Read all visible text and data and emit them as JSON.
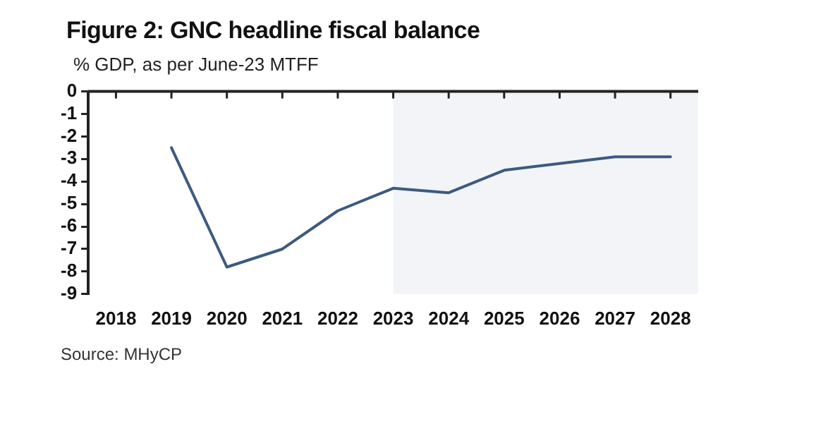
{
  "chart_data": {
    "type": "line",
    "title": "Figure 2: GNC headline fiscal balance",
    "subtitle": "% GDP, as per June-23 MTFF",
    "categories": [
      "2018",
      "2019",
      "2020",
      "2021",
      "2022",
      "2023",
      "2024",
      "2025",
      "2026",
      "2027",
      "2028"
    ],
    "series": [
      {
        "color": "#3d5a80",
        "values": [
          null,
          -2.5,
          -7.8,
          -7.0,
          -5.3,
          -4.3,
          -4.5,
          -3.5,
          -3.2,
          -2.9,
          -2.9
        ]
      }
    ],
    "ylim": [
      -9,
      0
    ],
    "yticks": [
      0,
      -1,
      -2,
      -3,
      -4,
      -5,
      -6,
      -7,
      -8,
      -9
    ],
    "bands": [
      {
        "axis": "x",
        "from": "2023",
        "to": "2028",
        "color": "#f2f4f7"
      }
    ],
    "annotations": [
      "Source: MHyCP"
    ],
    "grid": false,
    "legend": false,
    "marker": "none",
    "line_style": "solid"
  }
}
